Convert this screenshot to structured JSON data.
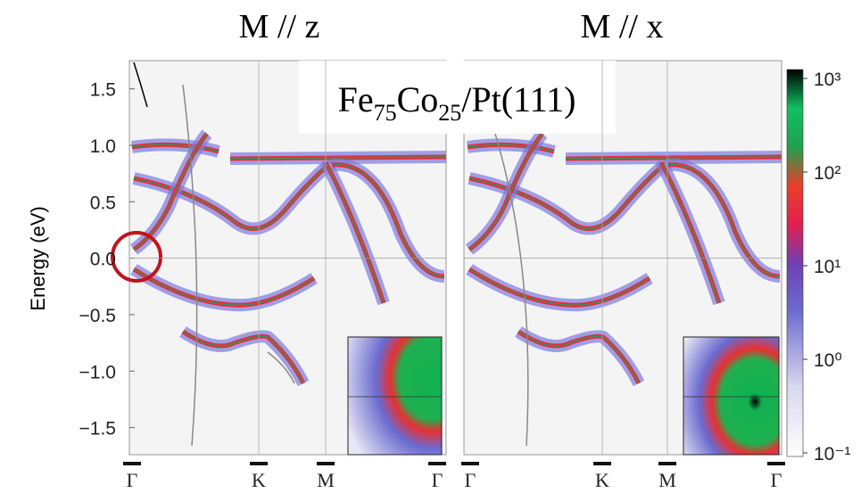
{
  "panel_titles": [
    "M // z",
    "M // x"
  ],
  "sample_label": [
    "Fe",
    "75",
    "Co",
    "25",
    "/Pt(111)"
  ],
  "y_axis": {
    "label": "Energy (eV)",
    "ylim": [
      -1.74,
      1.75
    ],
    "yticks": [
      1.5,
      {
        "value": 1,
        "label": "1.0"
      },
      0.5,
      {
        "value": 0,
        "label": "0.0"
      },
      {
        "value": -0.5,
        "label": "−0.5"
      },
      {
        "value": -1,
        "label": "−1.0"
      },
      {
        "value": -1.5,
        "label": "−1.5"
      }
    ]
  },
  "x_ticks": [
    [
      "Γ",
      "K",
      "M",
      "Γ"
    ],
    [
      "Γ",
      "K",
      "M",
      "Γ"
    ]
  ],
  "colorbar": {
    "scale": "log",
    "clim": [
      0.1,
      1000
    ],
    "ticks": [
      {
        "value": 1000,
        "label": "10³"
      },
      {
        "value": 100,
        "label": "10²"
      },
      {
        "value": 10,
        "label": "10¹"
      },
      {
        "value": 1,
        "label": "10⁰"
      },
      {
        "value": 0.1,
        "label": "10⁻¹"
      }
    ]
  }
}
